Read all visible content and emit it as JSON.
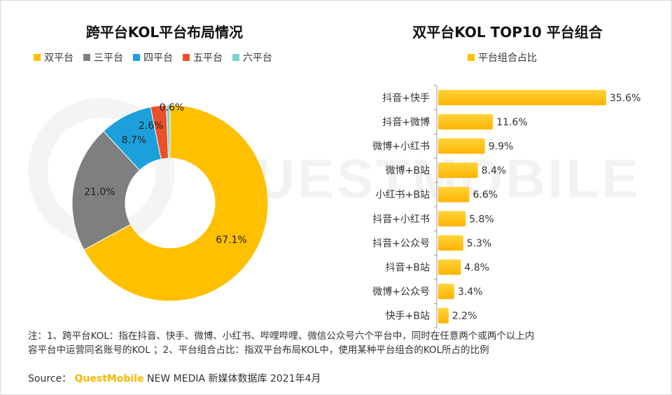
{
  "chart_data": [
    {
      "type": "pie",
      "title": "跨平台KOL平台布局情况",
      "legend_position": "top",
      "categories": [
        "双平台",
        "三平台",
        "四平台",
        "五平台",
        "六平台"
      ],
      "values": [
        67.1,
        21.0,
        8.7,
        2.6,
        0.6
      ],
      "labels": [
        "67.1%",
        "21.0%",
        "8.7%",
        "2.6%",
        "0.6%"
      ],
      "colors": [
        "#FFC000",
        "#7F7F7F",
        "#1CA0DC",
        "#E8512A",
        "#7ED3CF"
      ]
    },
    {
      "type": "bar",
      "orientation": "horizontal",
      "title": "双平台KOL TOP10 平台组合",
      "legend_position": "top",
      "series": [
        {
          "name": "平台组合占比",
          "values": [
            35.6,
            11.6,
            9.9,
            8.4,
            6.6,
            5.8,
            5.3,
            4.8,
            3.4,
            2.2
          ]
        }
      ],
      "categories": [
        "抖音+快手",
        "抖音+微博",
        "微博+小红书",
        "微博+B站",
        "小红书+B站",
        "抖音+小红书",
        "抖音+公众号",
        "抖音+B站",
        "微博+公众号",
        "快手+B站"
      ],
      "labels": [
        "35.6%",
        "11.6%",
        "9.9%",
        "8.4%",
        "6.6%",
        "5.8%",
        "5.3%",
        "4.8%",
        "3.4%",
        "2.2%"
      ],
      "xlim": [
        0,
        40
      ],
      "color": "#FFC000",
      "grid": false
    }
  ],
  "note": {
    "line1": "注：1、跨平台KOL：指在抖音、快手、微博、小红书、哔哩哔哩、微信公众号六个平台中，同时在任意两个或两个以上内",
    "line2": "容平台中运营同名账号的KOL ；2、平台组合占比：指双平台布局KOL中，使用某种平台组合的KOL所占的比例"
  },
  "source": {
    "prefix": "Source： ",
    "brand": "QuestMobile",
    "suffix": " NEW MEDIA 新媒体数据库 2021年4月"
  },
  "watermark": {
    "text": "QUESTMOBILE"
  }
}
